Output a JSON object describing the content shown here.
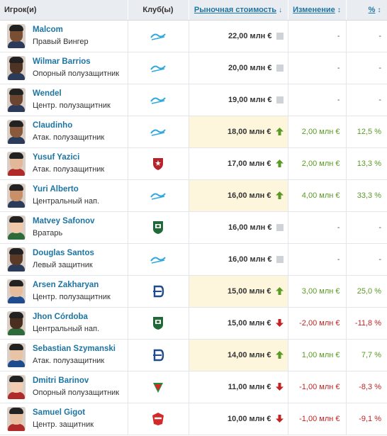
{
  "header": {
    "player": "Игрок(и)",
    "club": "Клуб(ы)",
    "value": "Рыночная стоимость",
    "value_sort": "↓",
    "change": "Изменение",
    "change_sort": "↕",
    "pct": "%",
    "pct_sort": "↕"
  },
  "rows": [
    {
      "name": "Malcom",
      "position": "Правый Вингер",
      "club": "zenit-logo",
      "value": "22,00 млн €",
      "trend": "same",
      "change": "-",
      "pct": "-",
      "highlight": false,
      "skin": "#7a4e33",
      "shirt": "#2a3b5c"
    },
    {
      "name": "Wilmar Barrios",
      "position": "Опорный полузащитник",
      "club": "zenit-logo",
      "value": "20,00 млн €",
      "trend": "same",
      "change": "-",
      "pct": "-",
      "highlight": false,
      "skin": "#4f3324",
      "shirt": "#2a3b5c"
    },
    {
      "name": "Wendel",
      "position": "Центр. полузащитник",
      "club": "zenit-logo",
      "value": "19,00 млн €",
      "trend": "same",
      "change": "-",
      "pct": "-",
      "highlight": false,
      "skin": "#6b4530",
      "shirt": "#2a3b5c"
    },
    {
      "name": "Claudinho",
      "position": "Атак. полузащитник",
      "club": "zenit-logo",
      "value": "18,00 млн €",
      "trend": "up",
      "change": "2,00 млн €",
      "pct": "12,5 %",
      "highlight": true,
      "skin": "#8a5a3c",
      "shirt": "#2a3b5c"
    },
    {
      "name": "Yusuf Yazici",
      "position": "Атак. полузащитник",
      "club": "cska-logo",
      "value": "17,00 млн €",
      "trend": "up",
      "change": "2,00 млн €",
      "pct": "13,3 %",
      "highlight": false,
      "skin": "#e3b899",
      "shirt": "#b02a2a"
    },
    {
      "name": "Yuri Alberto",
      "position": "Центральный нап.",
      "club": "zenit-logo",
      "value": "16,00 млн €",
      "trend": "up",
      "change": "4,00 млн €",
      "pct": "33,3 %",
      "highlight": true,
      "skin": "#c98f68",
      "shirt": "#2a3b5c"
    },
    {
      "name": "Matvey Safonov",
      "position": "Вратарь",
      "club": "krasnodar-logo",
      "value": "16,00 млн €",
      "trend": "same",
      "change": "-",
      "pct": "-",
      "highlight": false,
      "skin": "#f0c9ab",
      "shirt": "#2d6b3a"
    },
    {
      "name": "Douglas Santos",
      "position": "Левый защитник",
      "club": "zenit-logo",
      "value": "16,00 млн €",
      "trend": "same",
      "change": "-",
      "pct": "-",
      "highlight": false,
      "skin": "#5a3a26",
      "shirt": "#2a3b5c"
    },
    {
      "name": "Arsen Zakharyan",
      "position": "Центр. полузащитник",
      "club": "dynamo-logo",
      "value": "15,00 млн €",
      "trend": "up",
      "change": "3,00 млн €",
      "pct": "25,0 %",
      "highlight": true,
      "skin": "#e5bd9d",
      "shirt": "#1f4b8f"
    },
    {
      "name": "Jhon Córdoba",
      "position": "Центральный нап.",
      "club": "krasnodar-logo",
      "value": "15,00 млн €",
      "trend": "down",
      "change": "-2,00 млн €",
      "pct": "-11,8 %",
      "highlight": false,
      "skin": "#4a2e1f",
      "shirt": "#2d6b3a"
    },
    {
      "name": "Sebastian Szymanski",
      "position": "Атак. полузащитник",
      "club": "dynamo-logo",
      "value": "14,00 млн €",
      "trend": "up",
      "change": "1,00 млн €",
      "pct": "7,7 %",
      "highlight": true,
      "skin": "#e8c3a5",
      "shirt": "#1f4b8f"
    },
    {
      "name": "Dmitri Barinov",
      "position": "Опорный полузащитник",
      "club": "lokomotiv-logo",
      "value": "11,00 млн €",
      "trend": "down",
      "change": "-1,00 млн €",
      "pct": "-8,3 %",
      "highlight": false,
      "skin": "#f2cdb2",
      "shirt": "#b02a2a"
    },
    {
      "name": "Samuel Gigot",
      "position": "Центр. защитник",
      "club": "spartak-logo",
      "value": "10,00 млн €",
      "trend": "down",
      "change": "-1,00 млн €",
      "pct": "-9,1 %",
      "highlight": false,
      "skin": "#e8c0a1",
      "shirt": "#b02a2a"
    }
  ]
}
